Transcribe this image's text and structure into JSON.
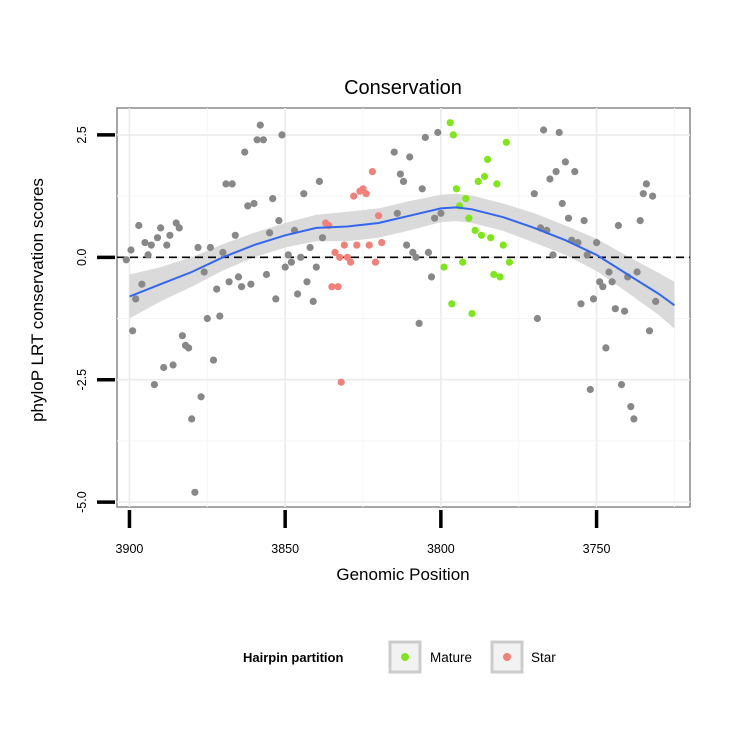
{
  "chart_data": {
    "type": "scatter",
    "title": "Conservation",
    "xlabel": "Genomic Position",
    "ylabel": "phyloP LRT conservation scores",
    "x_reversed": true,
    "xlim": [
      3904,
      3720
    ],
    "ylim": [
      -5.1,
      3.05
    ],
    "x_ticks": [
      3900,
      3850,
      3800,
      3750
    ],
    "y_ticks": [
      2.5,
      0.0,
      -2.5,
      -5.0
    ],
    "y_tick_labels": [
      "2.5",
      "0.0",
      "-2.5",
      "-5.0"
    ],
    "reference_line": {
      "y": 0,
      "style": "dashed"
    },
    "grid": true,
    "legend": {
      "title": "Hairpin partition",
      "position": "bottom",
      "entries": [
        {
          "label": "Mature",
          "color": "#7fe51c"
        },
        {
          "label": "Star",
          "color": "#f0807a"
        }
      ]
    },
    "colors": {
      "other": "#888888",
      "mature": "#7fe51c",
      "star": "#f0807a",
      "smooth": "#3366ee",
      "band": "#d3d3d3"
    },
    "series": [
      {
        "category": "other",
        "points": [
          [
            3901,
            -0.05
          ],
          [
            3899.5,
            0.15
          ],
          [
            3899,
            -1.5
          ],
          [
            3898,
            -0.85
          ],
          [
            3897,
            0.65
          ],
          [
            3896,
            -0.55
          ],
          [
            3895,
            0.3
          ],
          [
            3894,
            0.05
          ],
          [
            3893,
            0.25
          ],
          [
            3892,
            -2.6
          ],
          [
            3891,
            0.4
          ],
          [
            3890,
            0.6
          ],
          [
            3889,
            -2.25
          ],
          [
            3888,
            0.25
          ],
          [
            3887,
            0.45
          ],
          [
            3886,
            -2.2
          ],
          [
            3885,
            0.7
          ],
          [
            3884,
            0.6
          ],
          [
            3883,
            -1.6
          ],
          [
            3882,
            -1.8
          ],
          [
            3881,
            -1.85
          ],
          [
            3880,
            -3.3
          ],
          [
            3879,
            -4.8
          ],
          [
            3878,
            0.2
          ],
          [
            3877,
            -2.85
          ],
          [
            3876,
            -0.3
          ],
          [
            3875,
            -1.25
          ],
          [
            3874,
            0.2
          ],
          [
            3873,
            -2.1
          ],
          [
            3872,
            -0.65
          ],
          [
            3871,
            -1.2
          ],
          [
            3870,
            0.1
          ],
          [
            3869,
            1.5
          ],
          [
            3868,
            -0.5
          ],
          [
            3867,
            1.5
          ],
          [
            3866,
            0.45
          ],
          [
            3865,
            -0.4
          ],
          [
            3864,
            -0.6
          ],
          [
            3863,
            2.15
          ],
          [
            3862,
            1.05
          ],
          [
            3861,
            -0.55
          ],
          [
            3860,
            1.1
          ],
          [
            3859,
            2.4
          ],
          [
            3858,
            2.7
          ],
          [
            3857,
            2.4
          ],
          [
            3856,
            -0.35
          ],
          [
            3855,
            0.5
          ],
          [
            3854,
            1.2
          ],
          [
            3853,
            -0.85
          ],
          [
            3852,
            0.75
          ],
          [
            3851,
            2.5
          ],
          [
            3850,
            -0.2
          ],
          [
            3849,
            0.05
          ],
          [
            3848,
            -0.1
          ],
          [
            3847,
            0.55
          ],
          [
            3846,
            -0.75
          ],
          [
            3845,
            0.0
          ],
          [
            3844,
            1.3
          ],
          [
            3843,
            -0.5
          ],
          [
            3842,
            0.2
          ],
          [
            3841,
            -0.9
          ],
          [
            3840,
            -0.2
          ],
          [
            3839,
            1.55
          ],
          [
            3838,
            0.4
          ],
          [
            3815,
            2.15
          ],
          [
            3814,
            0.9
          ],
          [
            3813,
            1.7
          ],
          [
            3812,
            1.55
          ],
          [
            3811,
            0.25
          ],
          [
            3810,
            2.05
          ],
          [
            3809,
            0.1
          ],
          [
            3808,
            0.0
          ],
          [
            3807,
            -1.35
          ],
          [
            3806,
            1.4
          ],
          [
            3805,
            2.45
          ],
          [
            3804,
            0.1
          ],
          [
            3803,
            -0.4
          ],
          [
            3802,
            0.8
          ],
          [
            3801,
            2.55
          ],
          [
            3800,
            0.9
          ],
          [
            3770,
            1.3
          ],
          [
            3769,
            -1.25
          ],
          [
            3768,
            0.6
          ],
          [
            3767,
            2.6
          ],
          [
            3766,
            0.55
          ],
          [
            3765,
            1.6
          ],
          [
            3764,
            0.05
          ],
          [
            3763,
            1.75
          ],
          [
            3762,
            2.55
          ],
          [
            3761,
            1.1
          ],
          [
            3760,
            1.95
          ],
          [
            3759,
            0.8
          ],
          [
            3758,
            0.35
          ],
          [
            3757,
            1.75
          ],
          [
            3756,
            0.3
          ],
          [
            3755,
            -0.95
          ],
          [
            3754,
            0.75
          ],
          [
            3753,
            0.05
          ],
          [
            3752,
            -2.7
          ],
          [
            3751,
            -0.85
          ],
          [
            3750,
            0.3
          ],
          [
            3749,
            -0.5
          ],
          [
            3748,
            -0.6
          ],
          [
            3747,
            -1.85
          ],
          [
            3746,
            -0.3
          ],
          [
            3745,
            -0.5
          ],
          [
            3744,
            -1.05
          ],
          [
            3743,
            0.65
          ],
          [
            3742,
            -2.6
          ],
          [
            3741,
            -1.1
          ],
          [
            3740,
            -0.4
          ],
          [
            3739,
            -3.05
          ],
          [
            3738,
            -3.3
          ],
          [
            3737,
            -0.3
          ],
          [
            3736,
            0.75
          ],
          [
            3735,
            1.3
          ],
          [
            3734,
            1.5
          ],
          [
            3733,
            -1.5
          ],
          [
            3732,
            1.25
          ],
          [
            3731,
            -0.9
          ]
        ]
      },
      {
        "name": "Mature",
        "category": "mature",
        "points": [
          [
            3797,
            2.75
          ],
          [
            3796,
            2.5
          ],
          [
            3795,
            1.4
          ],
          [
            3794,
            1.05
          ],
          [
            3793,
            -0.1
          ],
          [
            3792,
            1.2
          ],
          [
            3791,
            0.8
          ],
          [
            3790,
            -1.15
          ],
          [
            3789,
            0.55
          ],
          [
            3788,
            1.55
          ],
          [
            3787,
            0.45
          ],
          [
            3786,
            1.65
          ],
          [
            3785,
            2.0
          ],
          [
            3784,
            0.4
          ],
          [
            3783,
            -0.35
          ],
          [
            3782,
            1.5
          ],
          [
            3781,
            -0.4
          ],
          [
            3780,
            0.25
          ],
          [
            3779,
            2.35
          ],
          [
            3778,
            -0.1
          ],
          [
            3799,
            -0.2
          ],
          [
            3796.5,
            -0.95
          ]
        ]
      },
      {
        "name": "Star",
        "category": "star",
        "points": [
          [
            3837,
            0.7
          ],
          [
            3836,
            0.65
          ],
          [
            3835,
            -0.6
          ],
          [
            3834,
            0.1
          ],
          [
            3833,
            -0.6
          ],
          [
            3832,
            -2.55
          ],
          [
            3831,
            0.25
          ],
          [
            3830,
            0.0
          ],
          [
            3829,
            -0.1
          ],
          [
            3828,
            1.25
          ],
          [
            3827,
            0.25
          ],
          [
            3826,
            1.35
          ],
          [
            3825,
            1.4
          ],
          [
            3824,
            1.3
          ],
          [
            3823,
            0.25
          ],
          [
            3822,
            1.75
          ],
          [
            3821,
            -0.1
          ],
          [
            3820,
            0.85
          ],
          [
            3819,
            0.3
          ],
          [
            3832.5,
            0.0
          ]
        ]
      }
    ],
    "smooth": [
      [
        3900,
        -0.8
      ],
      [
        3890,
        -0.55
      ],
      [
        3880,
        -0.3
      ],
      [
        3870,
        0.0
      ],
      [
        3860,
        0.25
      ],
      [
        3850,
        0.45
      ],
      [
        3840,
        0.6
      ],
      [
        3830,
        0.63
      ],
      [
        3820,
        0.7
      ],
      [
        3810,
        0.85
      ],
      [
        3800,
        1.0
      ],
      [
        3795,
        1.02
      ],
      [
        3790,
        0.98
      ],
      [
        3780,
        0.82
      ],
      [
        3770,
        0.6
      ],
      [
        3760,
        0.35
      ],
      [
        3750,
        0.05
      ],
      [
        3740,
        -0.35
      ],
      [
        3730,
        -0.75
      ],
      [
        3725,
        -0.98
      ]
    ],
    "band": [
      [
        3900,
        -0.8,
        0.45
      ],
      [
        3890,
        -0.55,
        0.35
      ],
      [
        3880,
        -0.3,
        0.3
      ],
      [
        3870,
        0.0,
        0.27
      ],
      [
        3860,
        0.25,
        0.25
      ],
      [
        3850,
        0.45,
        0.25
      ],
      [
        3840,
        0.6,
        0.27
      ],
      [
        3830,
        0.63,
        0.3
      ],
      [
        3820,
        0.7,
        0.3
      ],
      [
        3810,
        0.85,
        0.3
      ],
      [
        3800,
        1.0,
        0.28
      ],
      [
        3795,
        1.02,
        0.28
      ],
      [
        3790,
        0.98,
        0.28
      ],
      [
        3780,
        0.82,
        0.28
      ],
      [
        3770,
        0.6,
        0.3
      ],
      [
        3760,
        0.35,
        0.3
      ],
      [
        3750,
        0.05,
        0.33
      ],
      [
        3740,
        -0.35,
        0.37
      ],
      [
        3730,
        -0.75,
        0.43
      ],
      [
        3725,
        -0.98,
        0.48
      ]
    ]
  }
}
